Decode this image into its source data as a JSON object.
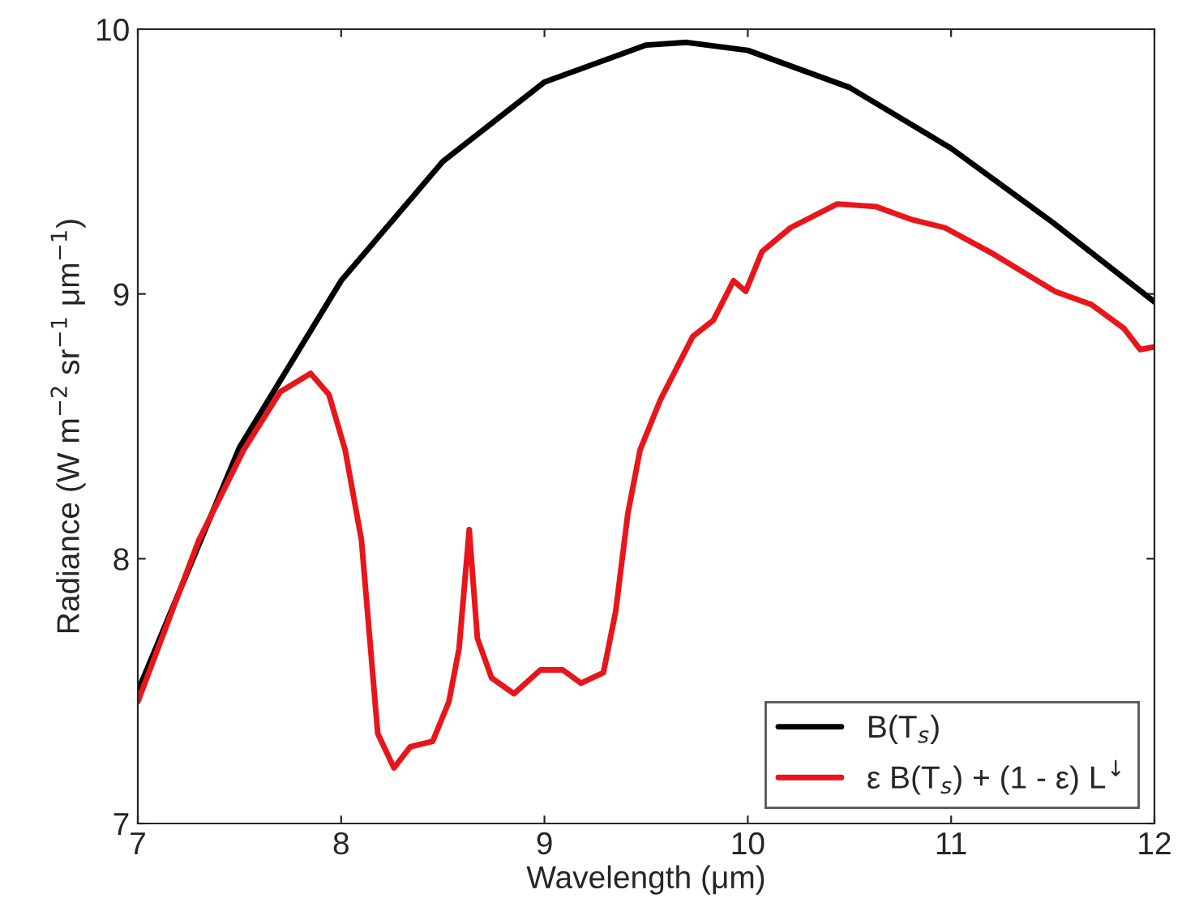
{
  "chart_data": {
    "type": "line",
    "xlabel": "Wavelength (μm)",
    "ylabel": "Radiance (W m$^{−2}$ sr$^{−1}$ μm$^{−1}$)",
    "xlim": [
      7,
      12
    ],
    "ylim": [
      7,
      10
    ],
    "xticks": [
      7,
      8,
      9,
      10,
      11,
      12
    ],
    "yticks": [
      7,
      8,
      9,
      10
    ],
    "grid": false,
    "legend": "bottom right",
    "series": [
      {
        "name": "B(T$_{s}$)",
        "color": "#000000",
        "x": [
          7.0,
          7.5,
          8.0,
          8.5,
          9.0,
          9.5,
          9.7,
          10.0,
          10.5,
          11.0,
          11.5,
          12.0
        ],
        "values": [
          7.5,
          8.42,
          9.05,
          9.5,
          9.8,
          9.94,
          9.95,
          9.92,
          9.78,
          9.55,
          9.27,
          8.97
        ]
      },
      {
        "name": "ε B(T$_{s}$) + (1 - ε) L$^{↓}$",
        "color": "#e8161b",
        "x": [
          7.0,
          7.3,
          7.52,
          7.7,
          7.85,
          7.94,
          8.02,
          8.1,
          8.18,
          8.26,
          8.34,
          8.45,
          8.53,
          8.58,
          8.63,
          8.67,
          8.74,
          8.85,
          8.98,
          9.09,
          9.18,
          9.29,
          9.35,
          9.41,
          9.47,
          9.57,
          9.73,
          9.83,
          9.93,
          9.99,
          10.07,
          10.21,
          10.44,
          10.63,
          10.81,
          10.97,
          11.21,
          11.51,
          11.69,
          11.85,
          11.93,
          12.0
        ],
        "values": [
          7.46,
          8.07,
          8.41,
          8.63,
          8.7,
          8.62,
          8.41,
          8.07,
          7.34,
          7.21,
          7.29,
          7.31,
          7.46,
          7.66,
          8.11,
          7.7,
          7.55,
          7.49,
          7.58,
          7.58,
          7.53,
          7.57,
          7.8,
          8.17,
          8.41,
          8.6,
          8.84,
          8.9,
          9.05,
          9.01,
          9.16,
          9.25,
          9.34,
          9.33,
          9.28,
          9.25,
          9.15,
          9.01,
          8.96,
          8.87,
          8.79,
          8.8
        ]
      }
    ]
  }
}
